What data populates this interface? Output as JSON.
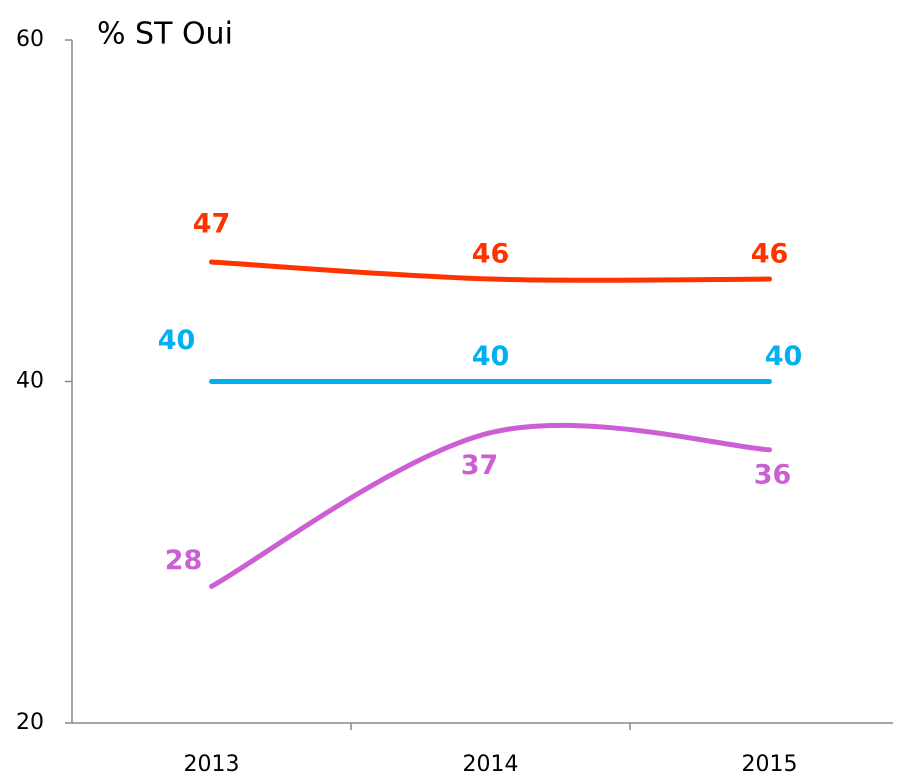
{
  "chart_data": {
    "type": "line",
    "title": "% ST Oui",
    "categories": [
      "2013",
      "2014",
      "2015"
    ],
    "series": [
      {
        "color": "#ff3300",
        "values": [
          47,
          46,
          46
        ]
      },
      {
        "color": "#00b0f0",
        "values": [
          40,
          40,
          40
        ]
      },
      {
        "color": "#cc5fd4",
        "values": [
          28,
          37,
          36
        ]
      }
    ],
    "ylim": [
      20,
      60
    ],
    "yticks": [
      20,
      40,
      60
    ],
    "smooth": true
  }
}
